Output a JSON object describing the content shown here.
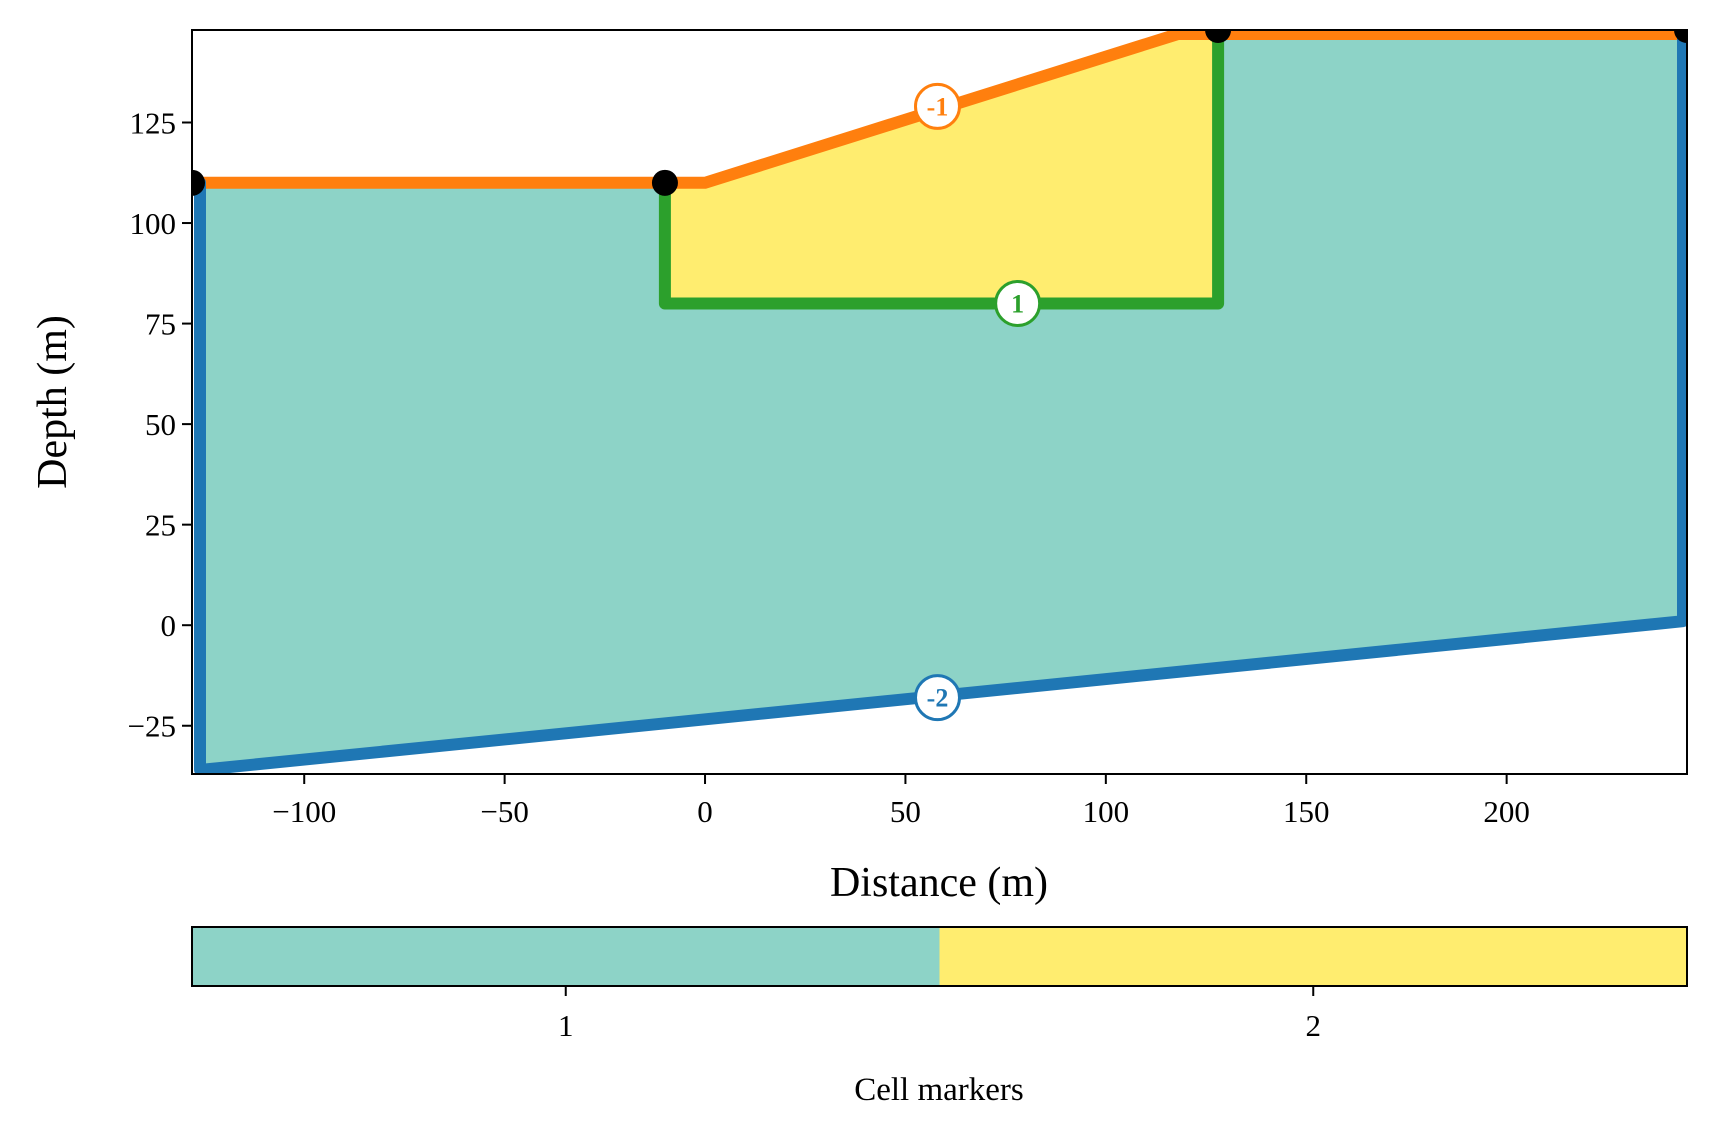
{
  "chart_data": {
    "type": "area",
    "title": "",
    "xlabel": "Distance (m)",
    "ylabel": "Depth (m)",
    "xlim": [
      -128,
      245
    ],
    "ylim": [
      -37,
      148
    ],
    "xticks": [
      -100,
      -50,
      0,
      50,
      100,
      150,
      200
    ],
    "yticks": [
      -25,
      0,
      25,
      50,
      75,
      100,
      125
    ],
    "grid": false,
    "regions": [
      {
        "name": "region-1",
        "cell_marker": 1,
        "color": "#8dd3c7",
        "polygon": [
          [
            -126,
            110
          ],
          [
            -10,
            110
          ],
          [
            -10,
            80
          ],
          [
            128,
            80
          ],
          [
            128,
            147
          ],
          [
            244,
            147
          ],
          [
            244,
            1
          ],
          [
            -126,
            -36
          ]
        ]
      },
      {
        "name": "region-2",
        "cell_marker": 2,
        "color": "#ffed6f",
        "polygon": [
          [
            -10,
            110
          ],
          [
            0,
            110
          ],
          [
            118,
            147
          ],
          [
            128,
            147
          ],
          [
            128,
            80
          ],
          [
            -10,
            80
          ]
        ]
      }
    ],
    "boundaries": [
      {
        "marker": "-1",
        "color": "#ff7f0e",
        "points": [
          [
            -128,
            110
          ],
          [
            0,
            110
          ],
          [
            118,
            147
          ],
          [
            245,
            147
          ]
        ],
        "label_pos": [
          58,
          129
        ]
      },
      {
        "marker": "1",
        "color": "#2ca02c",
        "points": [
          [
            -10,
            110
          ],
          [
            -10,
            80
          ],
          [
            128,
            80
          ],
          [
            128,
            147
          ]
        ],
        "label_pos": [
          78,
          80
        ]
      },
      {
        "marker": "-2",
        "color": "#1f77b4",
        "points": [
          [
            -126,
            110
          ],
          [
            -126,
            -36
          ],
          [
            244,
            1
          ],
          [
            244,
            147
          ]
        ],
        "label_pos": [
          58,
          -18
        ]
      }
    ],
    "nodes": [
      [
        -128,
        110
      ],
      [
        -10,
        110
      ],
      [
        128,
        148
      ],
      [
        245,
        148
      ]
    ],
    "colorbar": {
      "label": "Cell markers",
      "ticks": [
        "1",
        "2"
      ],
      "colors": [
        "#8dd3c7",
        "#ffed6f"
      ]
    }
  }
}
